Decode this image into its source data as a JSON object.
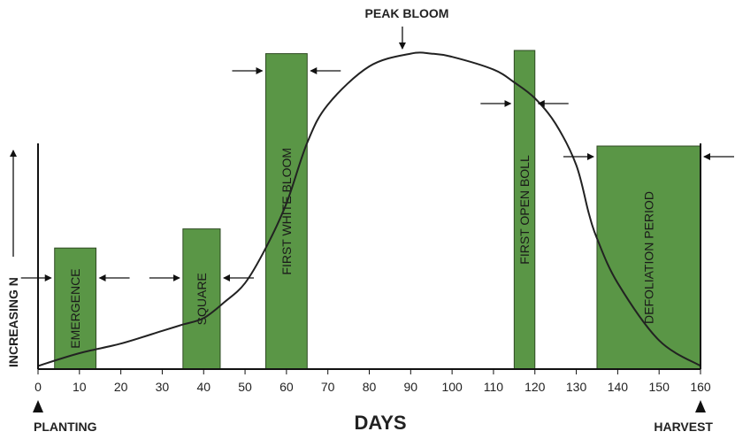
{
  "chart_data": {
    "type": "line",
    "xlabel": "DAYS",
    "ylabel": "INCREASING N",
    "xlim": [
      0,
      160
    ],
    "ylim": [
      0,
      1
    ],
    "x_ticks": [
      0,
      10,
      20,
      30,
      40,
      50,
      60,
      70,
      80,
      90,
      100,
      110,
      120,
      130,
      140,
      150,
      160
    ],
    "grid": false,
    "colors": {
      "bar": "#5a9646",
      "bar_edge": "#2e4a22",
      "line": "#222222"
    },
    "curve": {
      "x": [
        0,
        10,
        20,
        30,
        35,
        40,
        45,
        50,
        55,
        60,
        65,
        70,
        80,
        90,
        95,
        100,
        110,
        115,
        120,
        125,
        130,
        133,
        135,
        140,
        150,
        160
      ],
      "y": [
        0.01,
        0.05,
        0.08,
        0.12,
        0.14,
        0.16,
        0.21,
        0.27,
        0.38,
        0.52,
        0.71,
        0.83,
        0.95,
        0.99,
        0.99,
        0.98,
        0.94,
        0.9,
        0.85,
        0.77,
        0.64,
        0.49,
        0.41,
        0.27,
        0.09,
        0.01
      ]
    },
    "periods": [
      {
        "label": "EMERGENCE",
        "start": 4,
        "end": 14,
        "level": 0.38
      },
      {
        "label": "SQUARE",
        "start": 35,
        "end": 44,
        "level": 0.44
      },
      {
        "label": "FIRST WHITE BLOOM",
        "start": 55,
        "end": 65,
        "level": 0.99
      },
      {
        "label": "FIRST OPEN BOLL",
        "start": 115,
        "end": 120,
        "level": 1.0
      },
      {
        "label": "DEFOLIATION PERIOD",
        "start": 135,
        "end": 160,
        "level": 0.7
      }
    ],
    "annotations": {
      "peak": "PEAK BLOOM",
      "peak_day": 88,
      "start": "PLANTING",
      "end": "HARVEST"
    }
  }
}
